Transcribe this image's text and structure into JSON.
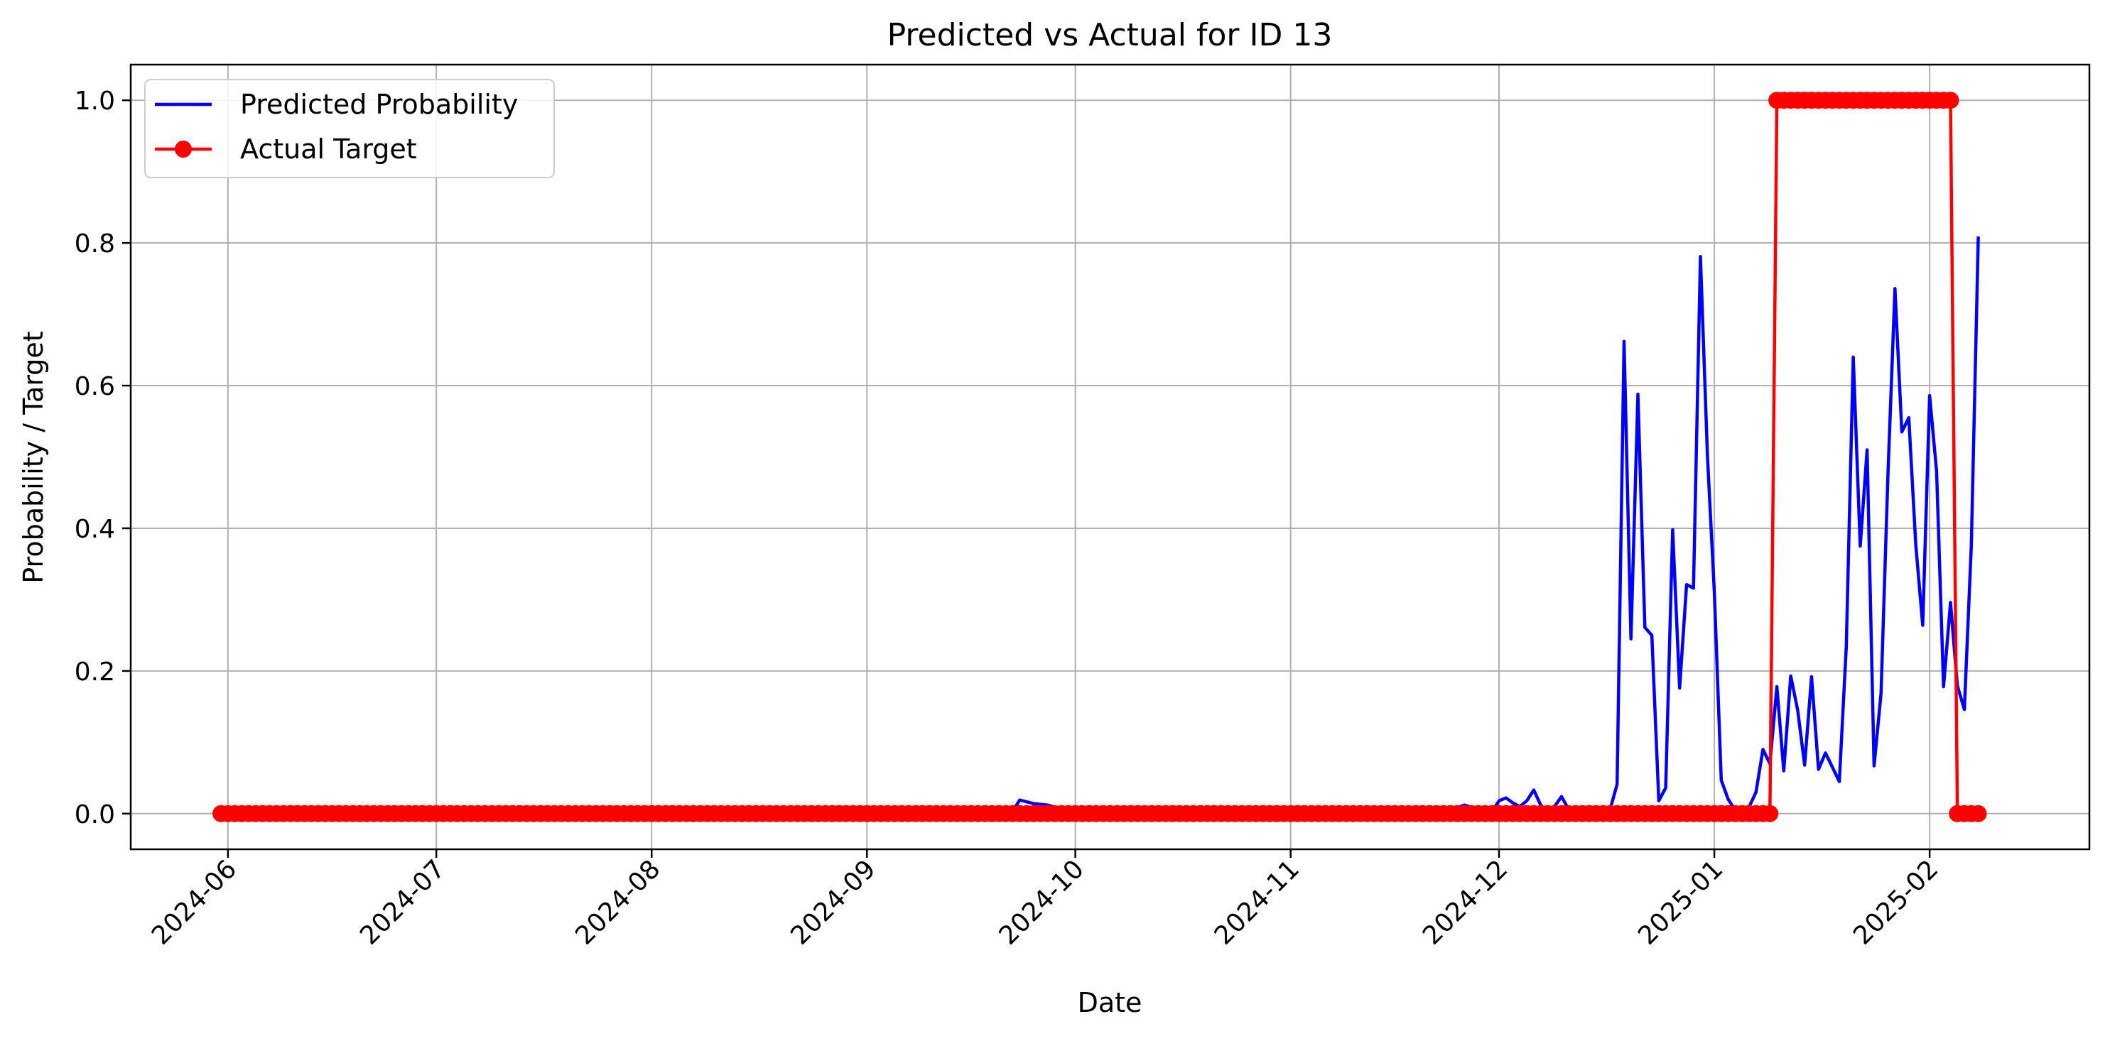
{
  "chart_data": {
    "type": "line",
    "title": "Predicted vs Actual for ID 13",
    "xlabel": "Date",
    "ylabel": "Probability / Target",
    "x_axis_type": "date",
    "xlim": [
      "2024-05-18",
      "2025-02-24"
    ],
    "ylim": [
      -0.05,
      1.05
    ],
    "x_ticks": [
      "2024-06",
      "2024-07",
      "2024-08",
      "2024-09",
      "2024-10",
      "2024-11",
      "2024-12",
      "2025-01",
      "2025-02"
    ],
    "y_ticks": [
      "0.0",
      "0.2",
      "0.4",
      "0.6",
      "0.8",
      "1.0"
    ],
    "grid": true,
    "legend_position": "top-left",
    "series": [
      {
        "name": "Predicted Probability",
        "color": "#0000ff",
        "marker": "none",
        "points": [
          [
            "2024-05-31",
            0.0
          ],
          [
            "2024-09-20",
            0.0
          ],
          [
            "2024-09-22",
            0.004
          ],
          [
            "2024-09-23",
            0.019
          ],
          [
            "2024-09-25",
            0.014
          ],
          [
            "2024-09-27",
            0.012
          ],
          [
            "2024-09-29",
            0.006
          ],
          [
            "2024-10-01",
            0.003
          ],
          [
            "2024-10-03",
            0.001
          ],
          [
            "2024-11-20",
            0.0
          ],
          [
            "2024-11-24",
            0.004
          ],
          [
            "2024-11-26",
            0.012
          ],
          [
            "2024-11-28",
            0.006
          ],
          [
            "2024-11-30",
            0.003
          ],
          [
            "2024-12-01",
            0.018
          ],
          [
            "2024-12-02",
            0.022
          ],
          [
            "2024-12-03",
            0.015
          ],
          [
            "2024-12-04",
            0.01
          ],
          [
            "2024-12-05",
            0.018
          ],
          [
            "2024-12-06",
            0.033
          ],
          [
            "2024-12-07",
            0.012
          ],
          [
            "2024-12-08",
            0.002
          ],
          [
            "2024-12-09",
            0.01
          ],
          [
            "2024-12-10",
            0.024
          ],
          [
            "2024-12-11",
            0.006
          ],
          [
            "2024-12-13",
            0.002
          ],
          [
            "2024-12-15",
            0.0
          ],
          [
            "2024-12-17",
            0.006
          ],
          [
            "2024-12-18",
            0.041
          ],
          [
            "2024-12-19",
            0.662
          ],
          [
            "2024-12-20",
            0.245
          ],
          [
            "2024-12-21",
            0.588
          ],
          [
            "2024-12-22",
            0.261
          ],
          [
            "2024-12-23",
            0.25
          ],
          [
            "2024-12-24",
            0.018
          ],
          [
            "2024-12-25",
            0.036
          ],
          [
            "2024-12-26",
            0.398
          ],
          [
            "2024-12-27",
            0.176
          ],
          [
            "2024-12-28",
            0.321
          ],
          [
            "2024-12-29",
            0.316
          ],
          [
            "2024-12-30",
            0.781
          ],
          [
            "2024-12-31",
            0.503
          ],
          [
            "2025-01-01",
            0.31
          ],
          [
            "2025-01-02",
            0.047
          ],
          [
            "2025-01-03",
            0.02
          ],
          [
            "2025-01-04",
            0.005
          ],
          [
            "2025-01-05",
            0.002
          ],
          [
            "2025-01-06",
            0.009
          ],
          [
            "2025-01-07",
            0.03
          ],
          [
            "2025-01-08",
            0.09
          ],
          [
            "2025-01-09",
            0.07
          ],
          [
            "2025-01-10",
            0.178
          ],
          [
            "2025-01-11",
            0.06
          ],
          [
            "2025-01-12",
            0.193
          ],
          [
            "2025-01-13",
            0.145
          ],
          [
            "2025-01-14",
            0.068
          ],
          [
            "2025-01-15",
            0.192
          ],
          [
            "2025-01-16",
            0.062
          ],
          [
            "2025-01-17",
            0.085
          ],
          [
            "2025-01-18",
            0.065
          ],
          [
            "2025-01-19",
            0.045
          ],
          [
            "2025-01-20",
            0.234
          ],
          [
            "2025-01-21",
            0.64
          ],
          [
            "2025-01-22",
            0.375
          ],
          [
            "2025-01-23",
            0.51
          ],
          [
            "2025-01-24",
            0.067
          ],
          [
            "2025-01-25",
            0.168
          ],
          [
            "2025-01-26",
            0.477
          ],
          [
            "2025-01-27",
            0.736
          ],
          [
            "2025-01-28",
            0.535
          ],
          [
            "2025-01-29",
            0.555
          ],
          [
            "2025-01-30",
            0.377
          ],
          [
            "2025-01-31",
            0.264
          ],
          [
            "2025-02-01",
            0.586
          ],
          [
            "2025-02-02",
            0.48
          ],
          [
            "2025-02-03",
            0.178
          ],
          [
            "2025-02-04",
            0.296
          ],
          [
            "2025-02-05",
            0.179
          ],
          [
            "2025-02-06",
            0.146
          ],
          [
            "2025-02-07",
            0.376
          ],
          [
            "2025-02-08",
            0.809
          ]
        ]
      },
      {
        "name": "Actual Target",
        "color": "#ff0000",
        "marker": "circle",
        "date_range": [
          "2024-05-31",
          "2025-02-08"
        ],
        "value_segments": [
          {
            "from": "2024-05-31",
            "to": "2025-01-09",
            "value": 0
          },
          {
            "from": "2025-01-10",
            "to": "2025-02-04",
            "value": 1
          },
          {
            "from": "2025-02-05",
            "to": "2025-02-08",
            "value": 0
          }
        ]
      }
    ]
  }
}
